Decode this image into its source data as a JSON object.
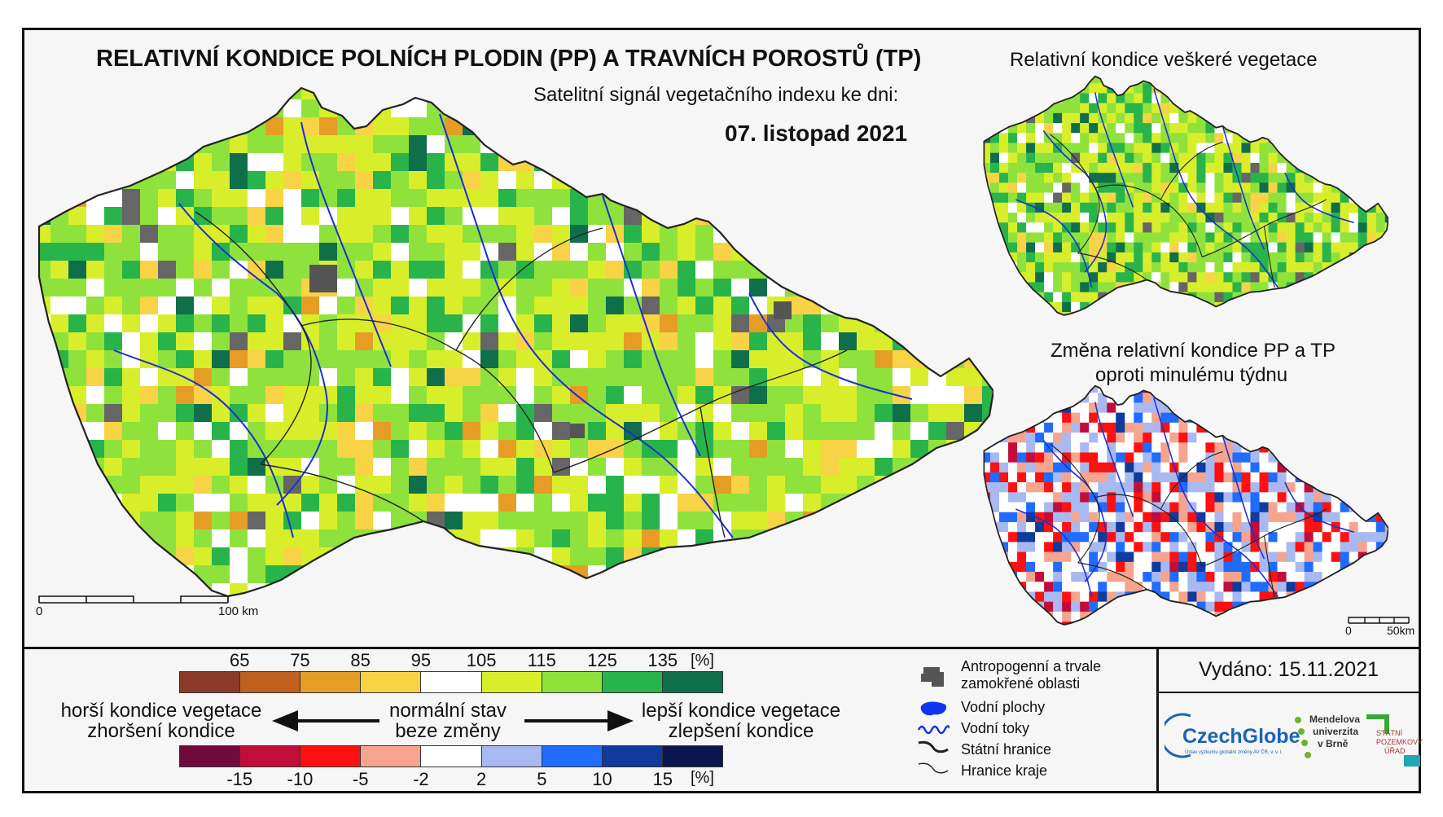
{
  "title": "RELATIVNÍ KONDICE POLNÍCH PLODIN (PP) A TRAVNÍCH POROSTŮ (TP)",
  "subtitle": "Satelitní signál vegetačního indexu ke dni:",
  "date": "07. listopad 2021",
  "mini_map_1_title": "Relativní kondice veškeré vegetace",
  "mini_map_2_title_line1": "Změna relativní kondice PP a TP",
  "mini_map_2_title_line2": "oproti minulému týdnu",
  "scale_main": {
    "start": "0",
    "end": "100 km"
  },
  "scale_mini": {
    "start": "0",
    "end": "50km"
  },
  "legend_condition": {
    "ticks": [
      "65",
      "75",
      "85",
      "95",
      "105",
      "115",
      "125",
      "135"
    ],
    "unit": "[%]",
    "colors": [
      "#8b3a2a",
      "#c0601f",
      "#e59d26",
      "#f7d345",
      "#ffffff",
      "#d9ee2b",
      "#8fe23c",
      "#28b44a",
      "#0f6f4a"
    ]
  },
  "legend_change": {
    "ticks": [
      "-15",
      "-10",
      "-5",
      "-2",
      "2",
      "5",
      "10",
      "15"
    ],
    "unit": "[%]",
    "colors": [
      "#6f0b3a",
      "#c20c3a",
      "#ff1010",
      "#f6a48e",
      "#ffffff",
      "#a8b9f2",
      "#1f6cff",
      "#0f3a9e",
      "#0b1550"
    ]
  },
  "worse_line1": "horší kondice vegetace",
  "worse_line2": "zhoršení kondice",
  "normal_line1": "normální stav",
  "normal_line2": "beze změny",
  "better_line1": "lepší kondice vegetace",
  "better_line2": "zlepšení kondice",
  "symbols": [
    {
      "label": "Antropogenní a trvale zamokřené oblasti",
      "icon": "urban-area-icon"
    },
    {
      "label": "Vodní plochy",
      "icon": "water-body-icon"
    },
    {
      "label": "Vodní toky",
      "icon": "river-icon"
    },
    {
      "label": "Státní hranice",
      "icon": "state-border-icon"
    },
    {
      "label": "Hranice kraje",
      "icon": "region-border-icon"
    }
  ],
  "issued": "Vydáno: 15.11.2021",
  "logos": {
    "czechglobe": "CzechGlobe",
    "czechglobe_sub": "Ústav výzkumu globální změny AV ČR, v. v. i.",
    "mendel_1": "Mendelova",
    "mendel_2": "univerzita",
    "mendel_3": "v Brně",
    "spu_1": "STÁTNÍ",
    "spu_2": "POZEMKOVÝ",
    "spu_3": "ÚŘAD"
  }
}
